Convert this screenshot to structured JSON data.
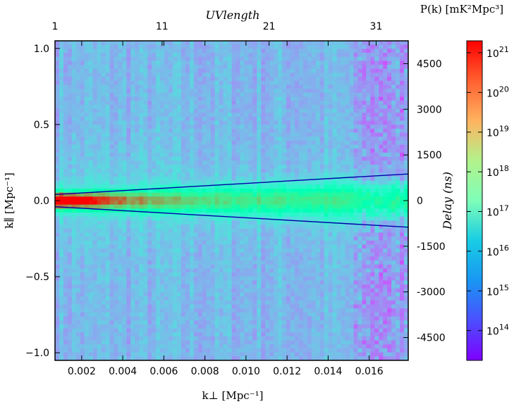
{
  "chart_data": {
    "type": "heatmap",
    "title": "",
    "xlabel": "k⊥ [Mpc⁻¹]",
    "ylabel": "k∥ [Mpc⁻¹]",
    "xlim": [
      0.0007,
      0.0179
    ],
    "ylim": [
      -1.05,
      1.05
    ],
    "x_ticks": [
      "0.002",
      "0.004",
      "0.006",
      "0.008",
      "0.010",
      "0.012",
      "0.014",
      "0.016"
    ],
    "y_ticks": [
      "1.0",
      "0.5",
      "0.0",
      "−0.5",
      "−1.0"
    ],
    "top_axis": {
      "label": "UVlength",
      "range": [
        1,
        34
      ],
      "ticks": [
        "1",
        "11",
        "21",
        "31"
      ]
    },
    "right_axis": {
      "label": "Delay (ns)",
      "range": [
        -5250,
        5250
      ],
      "ticks": [
        "4500",
        "3000",
        "1500",
        "0",
        "-1500",
        "-3000",
        "-4500"
      ]
    },
    "colorbar": {
      "label": "P(k) [mK²Mpc³]",
      "scale": "log",
      "colormap": "rainbow",
      "range_log10": [
        13.25,
        21.3
      ],
      "tick_values": [
        14,
        15,
        16,
        17,
        18,
        19,
        20,
        21
      ],
      "tick_labels": [
        "10",
        "10",
        "10",
        "10",
        "10",
        "10",
        "10",
        "10"
      ],
      "tick_exponents": [
        "14",
        "15",
        "16",
        "17",
        "18",
        "19",
        "20",
        "21"
      ]
    },
    "grid": false,
    "wedge_lines": [
      {
        "x": [
          0.0007,
          0.0179
        ],
        "y": [
          0.04,
          0.175
        ]
      },
      {
        "x": [
          0.0007,
          0.0179
        ],
        "y": [
          -0.04,
          -0.175
        ]
      }
    ],
    "heatmap_summary": {
      "peak_log10_power": 21,
      "peak_location": "k⊥ ≈ 0.001, k∥ ≈ 0",
      "background_log10_power": 15.3
    }
  }
}
